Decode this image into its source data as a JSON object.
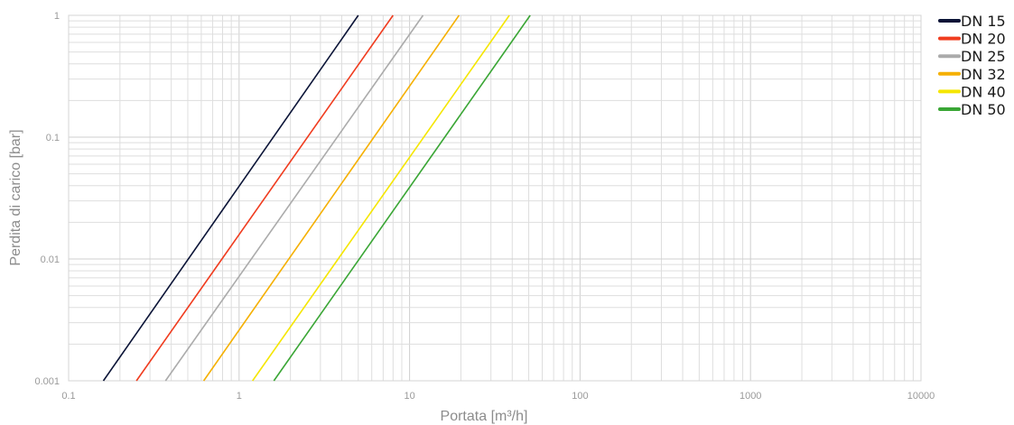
{
  "chart_data": {
    "type": "line",
    "title": "",
    "xlabel": "Portata [m³/h]",
    "ylabel": "Perdita di carico [bar]",
    "x_scale": "log",
    "y_scale": "log",
    "xlim": [
      0.1,
      10000
    ],
    "ylim": [
      0.001,
      1
    ],
    "grid": true,
    "legend_position": "right",
    "x_ticks": [
      "0.1",
      "1",
      "10",
      "100",
      "1000",
      "10000"
    ],
    "y_ticks": [
      "0.001",
      "0.01",
      "0.1",
      "1"
    ],
    "series": [
      {
        "name": "DN 15",
        "color": "#0b1437",
        "x": [
          0.16,
          5.0
        ],
        "y": [
          0.001,
          1
        ]
      },
      {
        "name": "DN 20",
        "color": "#f03c1f",
        "x": [
          0.25,
          8.0
        ],
        "y": [
          0.001,
          1
        ]
      },
      {
        "name": "DN 25",
        "color": "#ababab",
        "x": [
          0.37,
          12.0
        ],
        "y": [
          0.001,
          1
        ]
      },
      {
        "name": "DN 32",
        "color": "#f5b000",
        "x": [
          0.62,
          19.5
        ],
        "y": [
          0.001,
          1
        ]
      },
      {
        "name": "DN 40",
        "color": "#f5e600",
        "x": [
          1.2,
          38.5
        ],
        "y": [
          0.001,
          1
        ]
      },
      {
        "name": "DN 50",
        "color": "#3aa635",
        "x": [
          1.6,
          51.0
        ],
        "y": [
          0.001,
          1
        ]
      }
    ]
  }
}
